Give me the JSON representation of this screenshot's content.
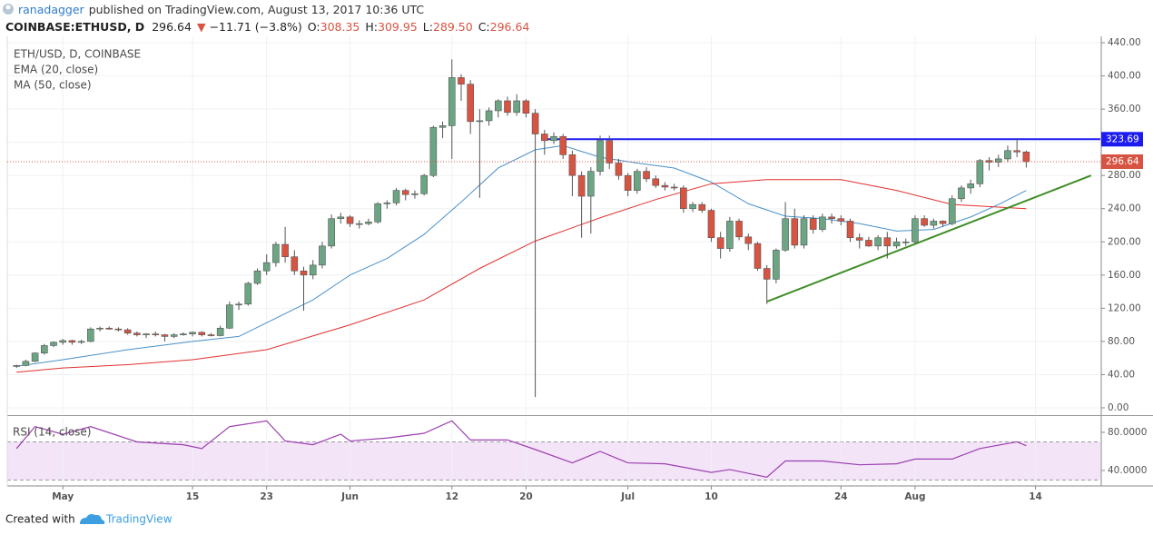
{
  "header": {
    "author": "ranadagger",
    "published": "published on TradingView.com, August 13, 2017 10:36 UTC",
    "symbol": "COINBASE:ETHUSD, D",
    "price": "296.64",
    "arrow": "▼",
    "change": "−11.71 (−3.8%)",
    "ohlc": [
      {
        "label": "O:",
        "value": "308.35"
      },
      {
        "label": "H:",
        "value": "309.95"
      },
      {
        "label": "L:",
        "value": "289.50"
      },
      {
        "label": "C:",
        "value": "296.64"
      }
    ]
  },
  "footer": {
    "created": "Created with",
    "brand": "TradingView"
  },
  "chart_data": {
    "type": "candlestick",
    "x": [
      "04-26",
      "04-27",
      "04-28",
      "04-29",
      "04-30",
      "05-01",
      "05-02",
      "05-03",
      "05-04",
      "05-05",
      "05-06",
      "05-07",
      "05-08",
      "05-09",
      "05-10",
      "05-11",
      "05-12",
      "05-13",
      "05-14",
      "05-15",
      "05-16",
      "05-17",
      "05-18",
      "05-19",
      "05-20",
      "05-21",
      "05-22",
      "05-23",
      "05-24",
      "05-25",
      "05-26",
      "05-27",
      "05-28",
      "05-29",
      "05-30",
      "05-31",
      "06-01",
      "06-02",
      "06-03",
      "06-04",
      "06-05",
      "06-06",
      "06-07",
      "06-08",
      "06-09",
      "06-10",
      "06-11",
      "06-12",
      "06-13",
      "06-14",
      "06-15",
      "06-16",
      "06-17",
      "06-18",
      "06-19",
      "06-20",
      "06-21",
      "06-22",
      "06-23",
      "06-24",
      "06-25",
      "06-26",
      "06-27",
      "06-28",
      "06-29",
      "06-30",
      "07-01",
      "07-02",
      "07-03",
      "07-04",
      "07-05",
      "07-06",
      "07-07",
      "07-08",
      "07-09",
      "07-10",
      "07-11",
      "07-12",
      "07-13",
      "07-14",
      "07-15",
      "07-16",
      "07-17",
      "07-18",
      "07-19",
      "07-20",
      "07-21",
      "07-22",
      "07-23",
      "07-24",
      "07-25",
      "07-26",
      "07-27",
      "07-28",
      "07-29",
      "07-30",
      "07-31",
      "08-01",
      "08-02",
      "08-03",
      "08-04",
      "08-05",
      "08-06",
      "08-07",
      "08-08",
      "08-09",
      "08-10",
      "08-11",
      "08-12",
      "08-13"
    ],
    "series": [
      {
        "name": "ETH/USD, D, COINBASE",
        "up_color": "#6ba583",
        "down_color": "#d75442",
        "open": [
          50,
          51,
          56,
          66,
          75,
          79,
          81,
          79,
          80,
          95,
          96,
          95,
          94,
          90,
          88,
          89,
          88,
          86,
          88,
          89,
          91,
          88,
          87,
          96,
          124,
          125,
          150,
          165,
          175,
          197,
          182,
          165,
          160,
          172,
          195,
          228,
          230,
          222,
          222,
          224,
          246,
          247,
          262,
          257,
          258,
          280,
          338,
          340,
          398,
          390,
          345,
          346,
          358,
          370,
          356,
          370,
          355,
          330,
          322,
          327,
          305,
          280,
          255,
          285,
          322,
          295,
          280,
          262,
          285,
          276,
          268,
          266,
          265,
          240,
          245,
          238,
          205,
          192,
          225,
          206,
          198,
          168,
          155,
          190,
          228,
          196,
          228,
          215,
          230,
          228,
          225,
          205,
          202,
          195,
          205,
          195,
          200,
          200,
          228,
          220,
          225,
          222,
          252,
          265,
          270,
          298,
          296,
          300,
          310,
          308.35
        ],
        "high": [
          52,
          58,
          67,
          77,
          80,
          83,
          82,
          82,
          97,
          98,
          98,
          97,
          96,
          92,
          90,
          92,
          89,
          90,
          91,
          92,
          92,
          90,
          99,
          128,
          128,
          152,
          168,
          185,
          200,
          218,
          190,
          170,
          178,
          200,
          233,
          235,
          232,
          226,
          228,
          248,
          250,
          265,
          264,
          262,
          282,
          340,
          345,
          420,
          402,
          395,
          360,
          362,
          372,
          375,
          378,
          372,
          360,
          335,
          332,
          330,
          310,
          285,
          290,
          328,
          328,
          300,
          283,
          288,
          290,
          280,
          272,
          270,
          268,
          248,
          248,
          240,
          212,
          230,
          228,
          210,
          200,
          172,
          192,
          248,
          240,
          232,
          232,
          234,
          234,
          232,
          228,
          210,
          206,
          208,
          212,
          205,
          204,
          232,
          232,
          228,
          226,
          256,
          268,
          275,
          300,
          302,
          305,
          316,
          325,
          309.95
        ],
        "low": [
          48,
          50,
          55,
          64,
          73,
          76,
          76,
          77,
          79,
          92,
          94,
          92,
          88,
          86,
          84,
          86,
          80,
          84,
          87,
          86,
          86,
          86,
          86,
          95,
          118,
          123,
          148,
          160,
          170,
          175,
          160,
          117,
          155,
          168,
          192,
          222,
          218,
          216,
          220,
          222,
          240,
          244,
          250,
          252,
          256,
          278,
          325,
          300,
          370,
          330,
          253,
          340,
          350,
          352,
          352,
          350,
          13,
          305,
          318,
          300,
          255,
          205,
          210,
          280,
          288,
          275,
          255,
          258,
          272,
          265,
          262,
          262,
          235,
          236,
          235,
          200,
          180,
          188,
          202,
          190,
          165,
          125,
          150,
          188,
          192,
          192,
          210,
          212,
          222,
          220,
          200,
          192,
          194,
          190,
          180,
          192,
          195,
          198,
          218,
          216,
          218,
          220,
          248,
          258,
          266,
          286,
          290,
          296,
          302,
          289.5
        ],
        "close": [
          51,
          56,
          66,
          75,
          79,
          81,
          79,
          80,
          95,
          96,
          95,
          94,
          90,
          88,
          89,
          88,
          86,
          88,
          89,
          91,
          88,
          87,
          96,
          124,
          125,
          150,
          165,
          175,
          197,
          182,
          165,
          160,
          172,
          195,
          228,
          230,
          222,
          222,
          224,
          246,
          247,
          262,
          257,
          258,
          280,
          338,
          340,
          398,
          390,
          345,
          346,
          358,
          370,
          356,
          370,
          355,
          330,
          322,
          327,
          305,
          280,
          255,
          285,
          322,
          295,
          280,
          262,
          285,
          276,
          268,
          266,
          265,
          240,
          245,
          238,
          205,
          192,
          225,
          206,
          198,
          168,
          155,
          190,
          228,
          196,
          228,
          215,
          230,
          228,
          225,
          205,
          202,
          195,
          205,
          195,
          200,
          200,
          228,
          220,
          225,
          222,
          252,
          265,
          270,
          298,
          296,
          300,
          310,
          308.35,
          296.64
        ]
      }
    ],
    "indicators": [
      {
        "name": "EMA (20, close)",
        "color": "#4a90c8",
        "x": [
          "04-26",
          "05-01",
          "05-08",
          "05-15",
          "05-20",
          "05-24",
          "05-28",
          "06-01",
          "06-05",
          "06-09",
          "06-13",
          "06-17",
          "06-21",
          "06-24",
          "06-28",
          "07-02",
          "07-06",
          "07-10",
          "07-14",
          "07-18",
          "07-22",
          "07-26",
          "07-30",
          "08-03",
          "08-07",
          "08-10",
          "08-13"
        ],
        "values": [
          50,
          58,
          70,
          80,
          86,
          108,
          130,
          160,
          180,
          209,
          248,
          289,
          311,
          316,
          302,
          295,
          289,
          272,
          246,
          231,
          228,
          222,
          213,
          215,
          230,
          245,
          262
        ]
      },
      {
        "name": "MA (50, close)",
        "color": "#e0312f",
        "x": [
          "04-26",
          "05-01",
          "05-08",
          "05-15",
          "05-23",
          "06-01",
          "06-09",
          "06-15",
          "06-21",
          "06-28",
          "07-04",
          "07-10",
          "07-16",
          "07-24",
          "07-30",
          "08-05",
          "08-13"
        ],
        "values": [
          43,
          48,
          52,
          58,
          70,
          100,
          130,
          168,
          201,
          229,
          251,
          270,
          275,
          275,
          262,
          245,
          240
        ]
      }
    ],
    "rsi": {
      "name": "RSI (14, close)",
      "color": "#9c3fb0",
      "band_color": "#f3e4f8",
      "bands": [
        30,
        70
      ],
      "ylim": [
        23.8,
        95.2
      ],
      "yticks": [
        {
          "value": 80,
          "label": "80.0000"
        },
        {
          "value": 40,
          "label": "40.0000"
        }
      ],
      "x": [
        "04-26",
        "04-28",
        "05-01",
        "05-04",
        "05-09",
        "05-14",
        "05-16",
        "05-19",
        "05-23",
        "05-25",
        "05-28",
        "05-31",
        "06-01",
        "06-05",
        "06-09",
        "06-12",
        "06-14",
        "06-18",
        "06-21",
        "06-25",
        "06-28",
        "07-01",
        "07-05",
        "07-10",
        "07-12",
        "07-16",
        "07-18",
        "07-22",
        "07-26",
        "07-30",
        "08-01",
        "08-05",
        "08-08",
        "08-12",
        "08-13"
      ],
      "values": [
        63,
        86,
        78,
        86,
        70,
        67,
        63,
        86,
        92,
        71,
        67,
        78,
        71,
        74,
        79,
        92,
        72,
        72,
        62,
        48,
        60,
        48,
        47,
        38,
        41,
        33,
        50,
        50,
        46,
        47,
        52,
        52,
        63,
        70,
        66
      ]
    },
    "horizontal_line": {
      "value": 323.69,
      "from": "06-22",
      "color": "#1c1cf0"
    },
    "trend_line": {
      "x": [
        "07-16",
        "08-20"
      ],
      "values": [
        128,
        280
      ],
      "color": "#3f8d26"
    },
    "xlim": [
      "04-25",
      "08-21"
    ],
    "xticks": [
      {
        "value": "05-01",
        "label": "May"
      },
      {
        "value": "05-15",
        "label": "15"
      },
      {
        "value": "05-23",
        "label": "23"
      },
      {
        "value": "06-01",
        "label": "Jun"
      },
      {
        "value": "06-12",
        "label": "12"
      },
      {
        "value": "06-20",
        "label": "20"
      },
      {
        "value": "07-01",
        "label": "Jul"
      },
      {
        "value": "07-10",
        "label": "10"
      },
      {
        "value": "07-24",
        "label": "24"
      },
      {
        "value": "08-01",
        "label": "Aug"
      },
      {
        "value": "08-14",
        "label": "14"
      }
    ],
    "ylim": [
      -6.6,
      447.7
    ],
    "yticks": [
      {
        "value": 0,
        "label": "0.00"
      },
      {
        "value": 40,
        "label": "40.00"
      },
      {
        "value": 80,
        "label": "80.00"
      },
      {
        "value": 120,
        "label": "120.00"
      },
      {
        "value": 160,
        "label": "160.00"
      },
      {
        "value": 200,
        "label": "200.00"
      },
      {
        "value": 240,
        "label": "240.00"
      },
      {
        "value": 280,
        "label": "280.00"
      },
      {
        "value": 320,
        "label": "320.00"
      },
      {
        "value": 360,
        "label": "360.00"
      },
      {
        "value": 400,
        "label": "400.00"
      },
      {
        "value": 440,
        "label": "440.00"
      }
    ],
    "grid": true
  }
}
